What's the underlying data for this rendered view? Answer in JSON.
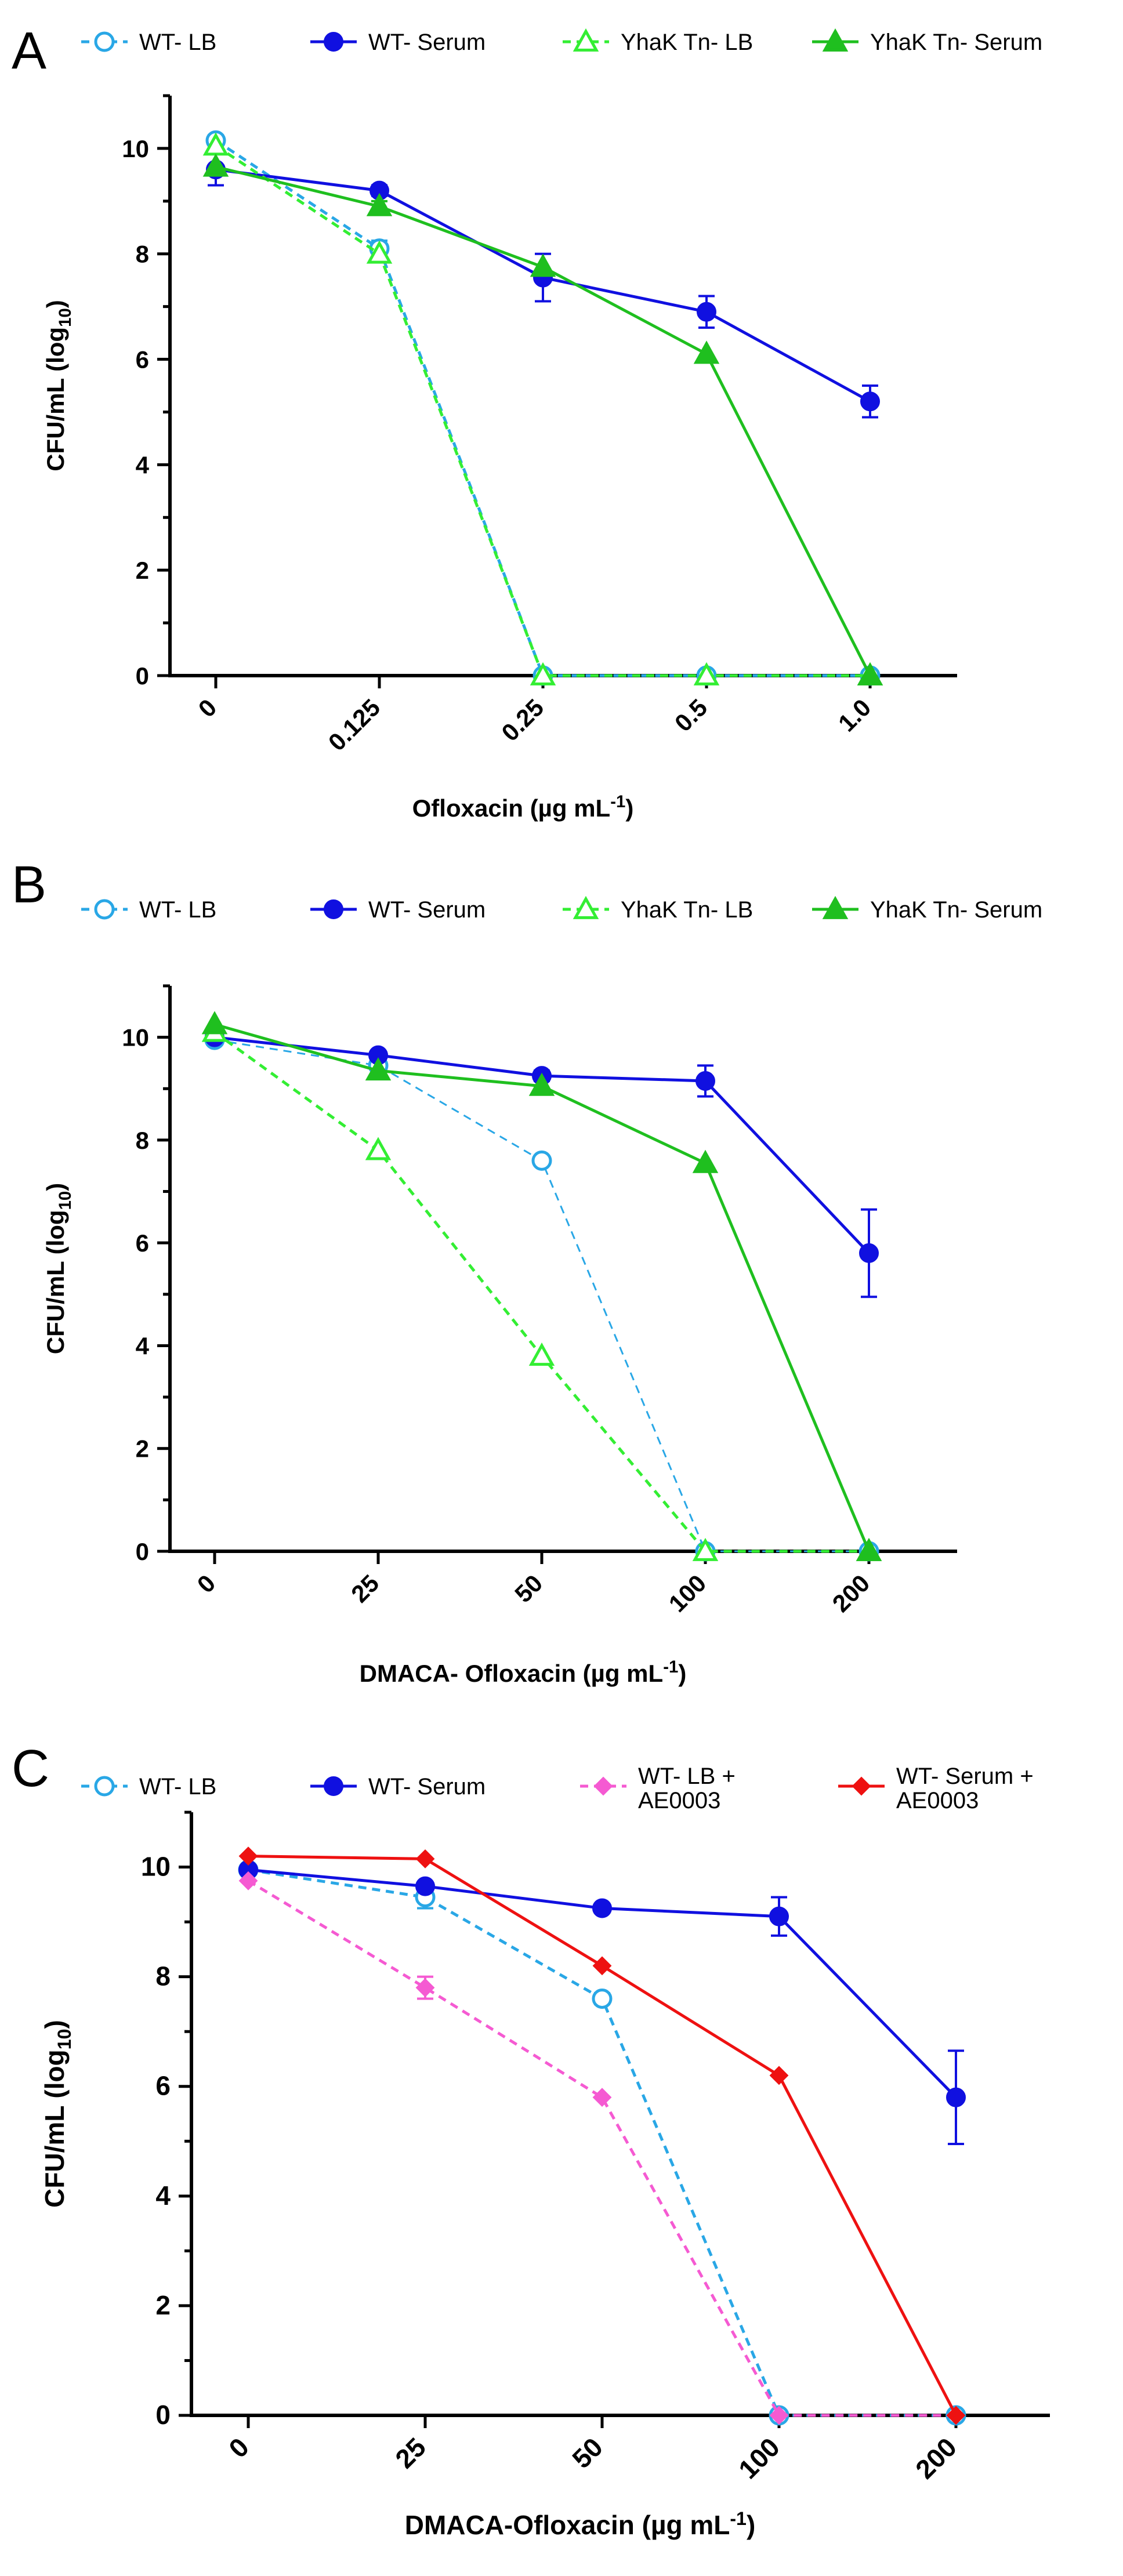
{
  "colors": {
    "wt_lb": "#29a7e6",
    "wt_serum": "#1010e0",
    "yhak_lb": "#33ee33",
    "yhak_serum": "#1fbf1f",
    "wt_lb_ae": "#f55ad2",
    "wt_serum_ae": "#ee1111",
    "axis": "#000000"
  },
  "chart_data": [
    {
      "panel": "A",
      "type": "line",
      "xlabel": "Ofloxacin (µg mL",
      "xlabel_sup": "-1",
      "xlabel_end": ")",
      "ylabel": "CFU/mL (log",
      "ylabel_sub": "10",
      "ylabel_end": ")",
      "categories": [
        "0",
        "0.125",
        "0.25",
        "0.5",
        "1.0"
      ],
      "ylim": [
        0,
        11
      ],
      "yticks": [
        0,
        2,
        4,
        6,
        8,
        10
      ],
      "legend": [
        {
          "label": "WT- LB",
          "series": 0
        },
        {
          "label": "WT- Serum",
          "series": 1
        },
        {
          "label": "YhaK Tn- LB",
          "series": 2
        },
        {
          "label": "YhaK Tn- Serum",
          "series": 3
        }
      ],
      "series": [
        {
          "name": "WT- LB",
          "color_key": "wt_lb",
          "marker": "circle-open",
          "dashed": true,
          "values": [
            10.15,
            8.1,
            0,
            0,
            0
          ],
          "err": [
            0.1,
            0.15,
            0,
            0,
            0
          ]
        },
        {
          "name": "WT- Serum",
          "color_key": "wt_serum",
          "marker": "circle-filled",
          "dashed": false,
          "values": [
            9.6,
            9.2,
            7.55,
            6.9,
            5.2
          ],
          "err": [
            0.3,
            0.1,
            0.45,
            0.3,
            0.3
          ]
        },
        {
          "name": "YhaK Tn- LB",
          "color_key": "yhak_lb",
          "marker": "triangle-open",
          "dashed": true,
          "values": [
            10.05,
            8.0,
            0,
            0,
            0
          ],
          "err": [
            0,
            0,
            0,
            0,
            0
          ]
        },
        {
          "name": "YhaK Tn- Serum",
          "color_key": "yhak_serum",
          "marker": "triangle-filled",
          "dashed": false,
          "values": [
            9.65,
            8.9,
            7.75,
            6.1,
            0
          ],
          "err": [
            0,
            0.1,
            0,
            0,
            0
          ]
        }
      ]
    },
    {
      "panel": "B",
      "type": "line",
      "xlabel": "DMACA- Ofloxacin (µg mL",
      "xlabel_sup": "-1",
      "xlabel_end": ")",
      "ylabel": "CFU/mL (log",
      "ylabel_sub": "10",
      "ylabel_end": ")",
      "categories": [
        "0",
        "25",
        "50",
        "100",
        "200"
      ],
      "ylim": [
        0,
        11
      ],
      "yticks": [
        0,
        2,
        4,
        6,
        8,
        10
      ],
      "legend": [
        {
          "label": "WT- LB",
          "series": 0
        },
        {
          "label": "WT- Serum",
          "series": 1
        },
        {
          "label": "YhaK Tn- LB",
          "series": 2
        },
        {
          "label": "YhaK Tn- Serum",
          "series": 3
        }
      ],
      "series": [
        {
          "name": "WT- LB",
          "color_key": "wt_lb",
          "marker": "circle-open",
          "dashed": true,
          "thin": true,
          "values": [
            9.95,
            9.45,
            7.6,
            0,
            0
          ],
          "err": [
            0,
            0,
            0,
            0,
            0
          ]
        },
        {
          "name": "WT- Serum",
          "color_key": "wt_serum",
          "marker": "circle-filled",
          "dashed": false,
          "values": [
            10.0,
            9.65,
            9.25,
            9.15,
            5.8
          ],
          "err": [
            0,
            0,
            0.1,
            0.3,
            0.85
          ]
        },
        {
          "name": "YhaK Tn- LB",
          "color_key": "yhak_lb",
          "marker": "triangle-open",
          "dashed": true,
          "values": [
            10.1,
            7.8,
            3.8,
            0,
            0
          ],
          "err": [
            0,
            0,
            0,
            0,
            0
          ]
        },
        {
          "name": "YhaK Tn- Serum",
          "color_key": "yhak_serum",
          "marker": "triangle-filled",
          "dashed": false,
          "values": [
            10.25,
            9.35,
            9.05,
            7.55,
            0
          ],
          "err": [
            0,
            0,
            0,
            0,
            0
          ]
        }
      ]
    },
    {
      "panel": "C",
      "type": "line",
      "xlabel": "DMACA-Ofloxacin (µg mL",
      "xlabel_sup": "-1",
      "xlabel_end": ")",
      "ylabel": "CFU/mL (log",
      "ylabel_sub": "10",
      "ylabel_end": ")",
      "categories": [
        "0",
        "25",
        "50",
        "100",
        "200"
      ],
      "ylim": [
        0,
        11
      ],
      "yticks": [
        0,
        2,
        4,
        6,
        8,
        10
      ],
      "legend": [
        {
          "label": "WT- LB",
          "series": 0
        },
        {
          "label": "WT- Serum",
          "series": 1
        },
        {
          "label": "WT- LB +",
          "label2": "AE0003",
          "series": 2
        },
        {
          "label": "WT- Serum +",
          "label2": "AE0003",
          "series": 3
        }
      ],
      "series": [
        {
          "name": "WT- LB",
          "color_key": "wt_lb",
          "marker": "circle-open",
          "dashed": true,
          "values": [
            9.95,
            9.45,
            7.6,
            0,
            0
          ],
          "err": [
            0.05,
            0.2,
            0.1,
            0,
            0
          ]
        },
        {
          "name": "WT- Serum",
          "color_key": "wt_serum",
          "marker": "circle-filled",
          "dashed": false,
          "values": [
            9.95,
            9.65,
            9.25,
            9.1,
            5.8
          ],
          "err": [
            0.05,
            0,
            0.05,
            0.35,
            0.85
          ]
        },
        {
          "name": "WT- LB + AE0003",
          "color_key": "wt_lb_ae",
          "marker": "diamond-filled",
          "dashed": true,
          "values": [
            9.75,
            7.8,
            5.8,
            0,
            0
          ],
          "err": [
            0,
            0.2,
            0,
            0,
            0
          ]
        },
        {
          "name": "WT- Serum + AE0003",
          "color_key": "wt_serum_ae",
          "marker": "diamond-filled",
          "dashed": false,
          "values": [
            10.2,
            10.15,
            8.2,
            6.2,
            0
          ],
          "err": [
            0,
            0,
            0,
            0,
            0
          ]
        }
      ]
    }
  ],
  "panels": [
    {
      "letter": "A"
    },
    {
      "letter": "B"
    },
    {
      "letter": "C"
    }
  ]
}
